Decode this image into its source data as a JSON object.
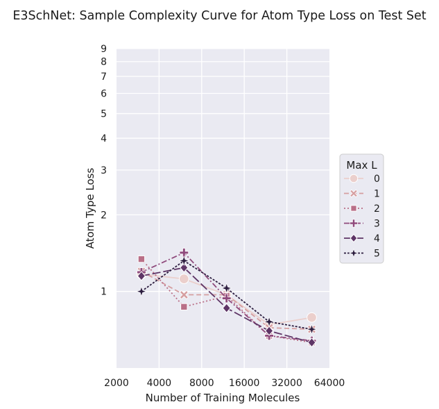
{
  "chart_data": {
    "type": "line",
    "title": "E3SchNet: Sample Complexity Curve for Atom Type Loss on Test Set",
    "xlabel": "Number of Training Molecules",
    "ylabel": "Atom Type Loss",
    "x_scale": "log2",
    "y_scale": "log",
    "xlim": [
      2000,
      64000
    ],
    "ylim": [
      0.5,
      9
    ],
    "x_ticks": [
      2000,
      4000,
      8000,
      16000,
      32000,
      64000
    ],
    "x_tick_labels": [
      "2000",
      "4000",
      "8000",
      "16000",
      "32000",
      "64000"
    ],
    "y_ticks": [
      1,
      2,
      3,
      4,
      5,
      6,
      7,
      8,
      9
    ],
    "y_tick_labels": [
      "1",
      "2",
      "3",
      "4",
      "5",
      "6",
      "7",
      "8",
      "9"
    ],
    "grid": true,
    "legend": {
      "title": "Max L",
      "placement": "right"
    },
    "x": [
      3000,
      6000,
      12000,
      24000,
      48000
    ],
    "series": [
      {
        "name": "0",
        "values": [
          1.17,
          1.12,
          0.97,
          0.74,
          0.79
        ],
        "color": "#ebcfcc",
        "marker": "circle",
        "dash": "solid"
      },
      {
        "name": "1",
        "values": [
          1.2,
          0.97,
          0.97,
          0.72,
          0.71
        ],
        "color": "#d59ea0",
        "marker": "x",
        "dash": "dashed"
      },
      {
        "name": "2",
        "values": [
          1.34,
          0.87,
          0.96,
          0.67,
          0.63
        ],
        "color": "#b96f87",
        "marker": "square",
        "dash": "dotted"
      },
      {
        "name": "3",
        "values": [
          1.19,
          1.42,
          0.94,
          0.67,
          0.64
        ],
        "color": "#8f4a7c",
        "marker": "plus",
        "dash": "dashdot"
      },
      {
        "name": "4",
        "values": [
          1.15,
          1.24,
          0.86,
          0.7,
          0.63
        ],
        "color": "#5e3566",
        "marker": "diamond",
        "dash": "longdash"
      },
      {
        "name": "5",
        "values": [
          1.0,
          1.32,
          1.03,
          0.76,
          0.71
        ],
        "color": "#2c1d3f",
        "marker": "star",
        "dash": "densedot"
      }
    ]
  }
}
